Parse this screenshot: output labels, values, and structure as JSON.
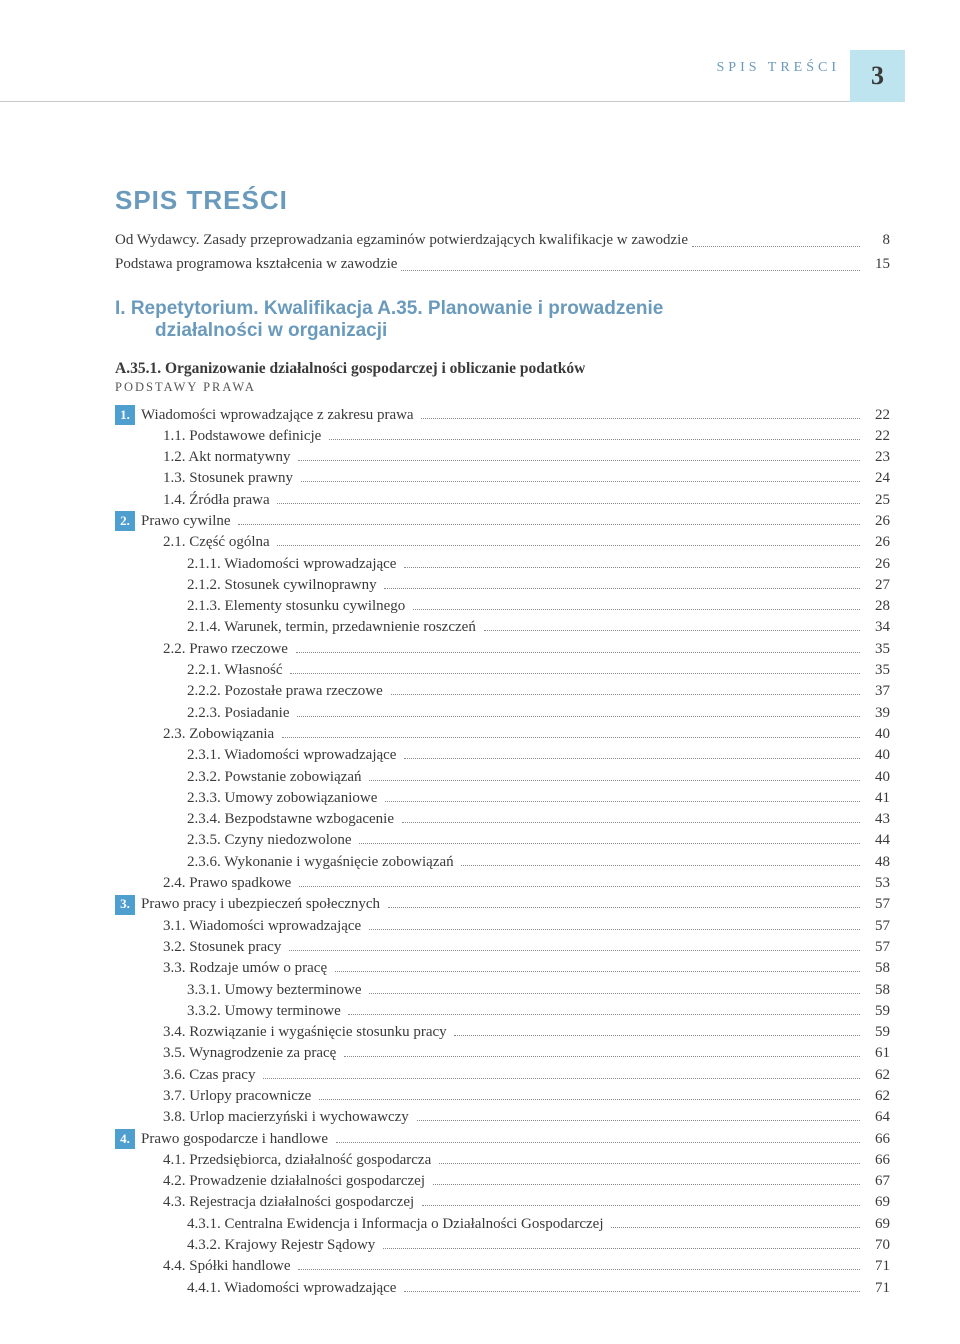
{
  "header": {
    "label": "SPIS TREŚCI",
    "page_number": "3",
    "header_bg": "#bee4f0",
    "header_text_color": "#6a9abc"
  },
  "main_title": "SPIS TREŚCI",
  "intro": [
    {
      "text": "Od Wydawcy. Zasady przeprowadzania egzaminów potwierdzających kwalifikacje w zawodzie",
      "page": "8"
    },
    {
      "text": "Podstawa programowa kształcenia w zawodzie",
      "page": "15"
    }
  ],
  "part": {
    "line1": "I. Repetytorium. Kwalifikacja A.35. Planowanie i prowadzenie",
    "line2": "działalności w organizacji"
  },
  "section": {
    "title": "A.35.1. Organizowanie działalności gospodarczej i obliczanie podatków",
    "subtitle": "PODSTAWY PRAWA"
  },
  "toc": [
    {
      "level": 0,
      "box": "1.",
      "text": "Wiadomości wprowadzające z zakresu prawa",
      "page": "22"
    },
    {
      "level": 1,
      "text": "1.1. Podstawowe definicje",
      "page": "22"
    },
    {
      "level": 1,
      "text": "1.2. Akt normatywny",
      "page": "23"
    },
    {
      "level": 1,
      "text": "1.3. Stosunek prawny",
      "page": "24"
    },
    {
      "level": 1,
      "text": "1.4. Źródła prawa",
      "page": "25"
    },
    {
      "level": 0,
      "box": "2.",
      "text": "Prawo cywilne",
      "page": "26"
    },
    {
      "level": 1,
      "text": "2.1. Część ogólna",
      "page": "26"
    },
    {
      "level": 2,
      "text": "2.1.1. Wiadomości wprowadzające",
      "page": "26"
    },
    {
      "level": 2,
      "text": "2.1.2. Stosunek cywilnoprawny",
      "page": "27"
    },
    {
      "level": 2,
      "text": "2.1.3. Elementy stosunku cywilnego",
      "page": "28"
    },
    {
      "level": 2,
      "text": "2.1.4. Warunek, termin, przedawnienie roszczeń",
      "page": "34"
    },
    {
      "level": 1,
      "text": "2.2. Prawo rzeczowe",
      "page": "35"
    },
    {
      "level": 2,
      "text": "2.2.1. Własność",
      "page": "35"
    },
    {
      "level": 2,
      "text": "2.2.2. Pozostałe prawa rzeczowe",
      "page": "37"
    },
    {
      "level": 2,
      "text": "2.2.3. Posiadanie",
      "page": "39"
    },
    {
      "level": 1,
      "text": "2.3. Zobowiązania",
      "page": "40"
    },
    {
      "level": 2,
      "text": "2.3.1. Wiadomości wprowadzające",
      "page": "40"
    },
    {
      "level": 2,
      "text": "2.3.2. Powstanie zobowiązań",
      "page": "40"
    },
    {
      "level": 2,
      "text": "2.3.3. Umowy zobowiązaniowe",
      "page": "41"
    },
    {
      "level": 2,
      "text": "2.3.4. Bezpodstawne wzbogacenie",
      "page": "43"
    },
    {
      "level": 2,
      "text": "2.3.5. Czyny niedozwolone",
      "page": "44"
    },
    {
      "level": 2,
      "text": "2.3.6. Wykonanie i wygaśnięcie zobowiązań",
      "page": "48"
    },
    {
      "level": 1,
      "text": "2.4. Prawo spadkowe",
      "page": "53"
    },
    {
      "level": 0,
      "box": "3.",
      "text": "Prawo pracy i ubezpieczeń społecznych",
      "page": "57"
    },
    {
      "level": 1,
      "text": "3.1. Wiadomości wprowadzające",
      "page": "57"
    },
    {
      "level": 1,
      "text": "3.2. Stosunek pracy",
      "page": "57"
    },
    {
      "level": 1,
      "text": "3.3. Rodzaje umów o pracę",
      "page": "58"
    },
    {
      "level": 2,
      "text": "3.3.1. Umowy bezterminowe",
      "page": "58"
    },
    {
      "level": 2,
      "text": "3.3.2. Umowy terminowe",
      "page": "59"
    },
    {
      "level": 1,
      "text": "3.4. Rozwiązanie i wygaśnięcie stosunku pracy",
      "page": "59"
    },
    {
      "level": 1,
      "text": "3.5. Wynagrodzenie za pracę",
      "page": "61"
    },
    {
      "level": 1,
      "text": "3.6. Czas pracy",
      "page": "62"
    },
    {
      "level": 1,
      "text": "3.7. Urlopy pracownicze",
      "page": "62"
    },
    {
      "level": 1,
      "text": "3.8. Urlop macierzyński i wychowawczy",
      "page": "64"
    },
    {
      "level": 0,
      "box": "4.",
      "text": "Prawo gospodarcze i handlowe",
      "page": "66"
    },
    {
      "level": 1,
      "text": "4.1. Przedsiębiorca, działalność gospodarcza",
      "page": "66"
    },
    {
      "level": 1,
      "text": "4.2. Prowadzenie działalności gospodarczej",
      "page": "67"
    },
    {
      "level": 1,
      "text": "4.3. Rejestracja działalności gospodarczej",
      "page": "69"
    },
    {
      "level": 2,
      "text": "4.3.1. Centralna Ewidencja i Informacja o Działalności Gospodarczej",
      "page": "69"
    },
    {
      "level": 2,
      "text": "4.3.2. Krajowy Rejestr Sądowy",
      "page": "70"
    },
    {
      "level": 1,
      "text": "4.4. Spółki handlowe",
      "page": "71"
    },
    {
      "level": 2,
      "text": "4.4.1. Wiadomości wprowadzające",
      "page": "71"
    }
  ],
  "colors": {
    "accent": "#6a9abc",
    "box": "#4f9ed0",
    "text": "#3a3a3a",
    "dots": "#888888"
  }
}
